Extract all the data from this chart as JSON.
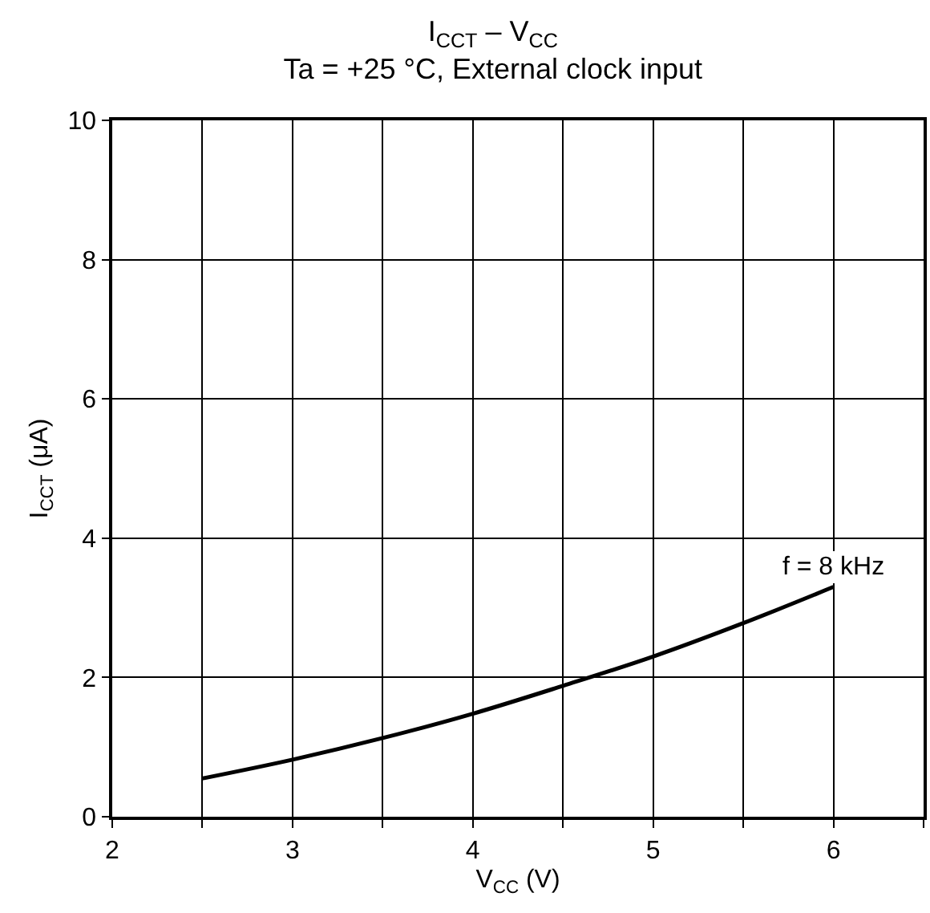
{
  "chart_data": {
    "type": "line",
    "title": "I$_{CCT}$ – V$_{CC}$",
    "subtitle": "Ta = +25 °C, External clock input",
    "xlabel": "V$_{CC}$ (V)",
    "ylabel": "I$_{CCT}$ (μA)",
    "x": [
      2.5,
      3,
      3.5,
      4,
      4.5,
      5,
      5.5,
      6
    ],
    "series": [
      {
        "color": "#000000",
        "values": [
          0.55,
          0.82,
          1.13,
          1.48,
          1.88,
          2.3,
          2.78,
          3.3
        ]
      }
    ],
    "xlim": [
      2,
      6.5
    ],
    "xticks": [
      2,
      {
        "value": 2.5,
        "label": null
      },
      3,
      {
        "value": 3.5,
        "label": null
      },
      4,
      {
        "value": 4.5,
        "label": null
      },
      5,
      {
        "value": 5.5,
        "label": null
      },
      6,
      {
        "value": 6.5,
        "label": null
      }
    ],
    "ylim": [
      0,
      10
    ],
    "yticks": [
      0,
      2,
      4,
      6,
      8,
      10
    ],
    "annotations": [
      {
        "text": "f = 8 kHz",
        "x": 6,
        "y": 3.3
      }
    ],
    "grid": true,
    "marker": "none",
    "line_style": "solid"
  }
}
